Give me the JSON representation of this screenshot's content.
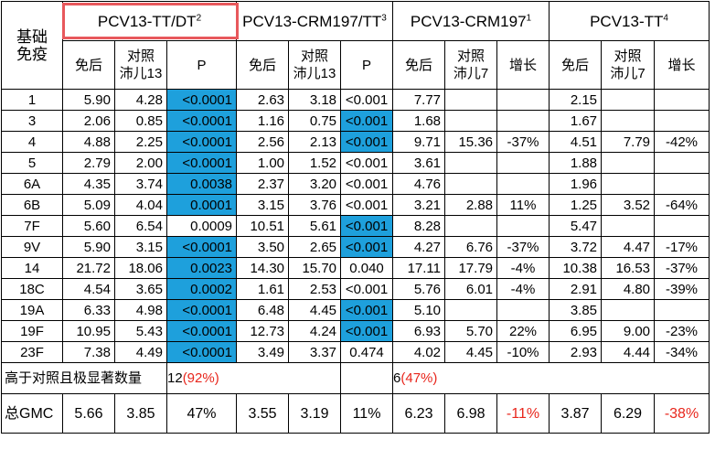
{
  "groups": {
    "g1": {
      "name": "PCV13-TT/DT",
      "sup": "2"
    },
    "g2": {
      "name": "PCV13-CRM197/TT",
      "sup": "3"
    },
    "g3": {
      "name": "PCV13-CRM197",
      "sup": "1"
    },
    "g4": {
      "name": "PCV13-TT",
      "sup": "4"
    }
  },
  "headers": {
    "base_line1": "基础",
    "base_line2": "免疫",
    "post": "免后",
    "ctrl13_line1": "对照",
    "ctrl13_line2": "沛儿13",
    "p": "P",
    "ctrl7_line1": "对照",
    "ctrl7_line2": "沛儿7",
    "growth": "增长"
  },
  "rows": [
    {
      "serotype": "1",
      "c": [
        "5.90",
        "4.28",
        "<0.0001",
        "2.63",
        "3.18",
        "<0.001",
        "7.77",
        "",
        "",
        "2.15",
        "",
        ""
      ]
    },
    {
      "serotype": "3",
      "c": [
        "2.06",
        "0.85",
        "<0.0001",
        "1.16",
        "0.75",
        "<0.001",
        "1.68",
        "",
        "",
        "1.67",
        "",
        ""
      ]
    },
    {
      "serotype": "4",
      "c": [
        "4.88",
        "2.25",
        "<0.0001",
        "2.56",
        "2.13",
        "<0.001",
        "9.71",
        "15.36",
        "-37%",
        "4.51",
        "7.79",
        "-42%"
      ]
    },
    {
      "serotype": "5",
      "c": [
        "2.79",
        "2.00",
        "<0.0001",
        "1.00",
        "1.52",
        "<0.001",
        "3.61",
        "",
        "",
        "1.88",
        "",
        ""
      ]
    },
    {
      "serotype": "6A",
      "c": [
        "4.35",
        "3.74",
        "0.0038",
        "2.37",
        "3.20",
        "<0.001",
        "4.76",
        "",
        "",
        "1.96",
        "",
        ""
      ]
    },
    {
      "serotype": "6B",
      "c": [
        "5.09",
        "4.04",
        "0.0001",
        "3.15",
        "3.76",
        "<0.001",
        "3.21",
        "2.88",
        "11%",
        "1.25",
        "3.52",
        "-64%"
      ]
    },
    {
      "serotype": "7F",
      "c": [
        "5.60",
        "6.54",
        "0.0009",
        "10.51",
        "5.61",
        "<0.001",
        "8.28",
        "",
        "",
        "5.47",
        "",
        ""
      ]
    },
    {
      "serotype": "9V",
      "c": [
        "5.90",
        "3.15",
        "<0.0001",
        "3.50",
        "2.65",
        "<0.001",
        "4.27",
        "6.76",
        "-37%",
        "3.72",
        "4.47",
        "-17%"
      ]
    },
    {
      "serotype": "14",
      "c": [
        "21.72",
        "18.06",
        "0.0023",
        "14.30",
        "15.70",
        "0.040",
        "17.11",
        "17.79",
        "-4%",
        "10.38",
        "16.53",
        "-37%"
      ]
    },
    {
      "serotype": "18C",
      "c": [
        "4.54",
        "3.65",
        "0.0002",
        "1.61",
        "2.53",
        "<0.001",
        "5.76",
        "6.01",
        "-4%",
        "2.91",
        "4.80",
        "-39%"
      ]
    },
    {
      "serotype": "19A",
      "c": [
        "6.33",
        "4.98",
        "<0.0001",
        "6.48",
        "4.45",
        "<0.001",
        "5.10",
        "",
        "",
        "3.85",
        "",
        ""
      ]
    },
    {
      "serotype": "19F",
      "c": [
        "10.95",
        "5.43",
        "<0.0001",
        "12.73",
        "4.24",
        "<0.001",
        "6.93",
        "5.70",
        "22%",
        "6.95",
        "9.00",
        "-23%"
      ]
    },
    {
      "serotype": "23F",
      "c": [
        "7.38",
        "4.49",
        "<0.0001",
        "3.49",
        "3.37",
        "0.474",
        "4.02",
        "4.45",
        "-10%",
        "2.93",
        "4.44",
        "-34%"
      ]
    }
  ],
  "highlight_color": "#1ea0dc",
  "highlighted_p": {
    "g1": [
      true,
      true,
      true,
      true,
      true,
      true,
      false,
      true,
      true,
      true,
      true,
      true,
      true
    ],
    "g2": [
      false,
      true,
      true,
      false,
      false,
      false,
      true,
      true,
      false,
      false,
      true,
      true,
      false
    ]
  },
  "summary": {
    "label": "高于对照且极显著数量",
    "g1_count": "12",
    "g1_pct": "(92%)",
    "g2_count": "6",
    "g2_pct": "(47%)"
  },
  "gmc": {
    "label": "总GMC",
    "c": [
      "5.66",
      "3.85",
      "47%",
      "3.55",
      "3.19",
      "11%",
      "6.23",
      "6.98",
      "-11%",
      "3.87",
      "6.29",
      "-38%"
    ],
    "red_cells": [
      8,
      11
    ]
  },
  "red_color": "#e8261c",
  "box_color": "#e8585c"
}
